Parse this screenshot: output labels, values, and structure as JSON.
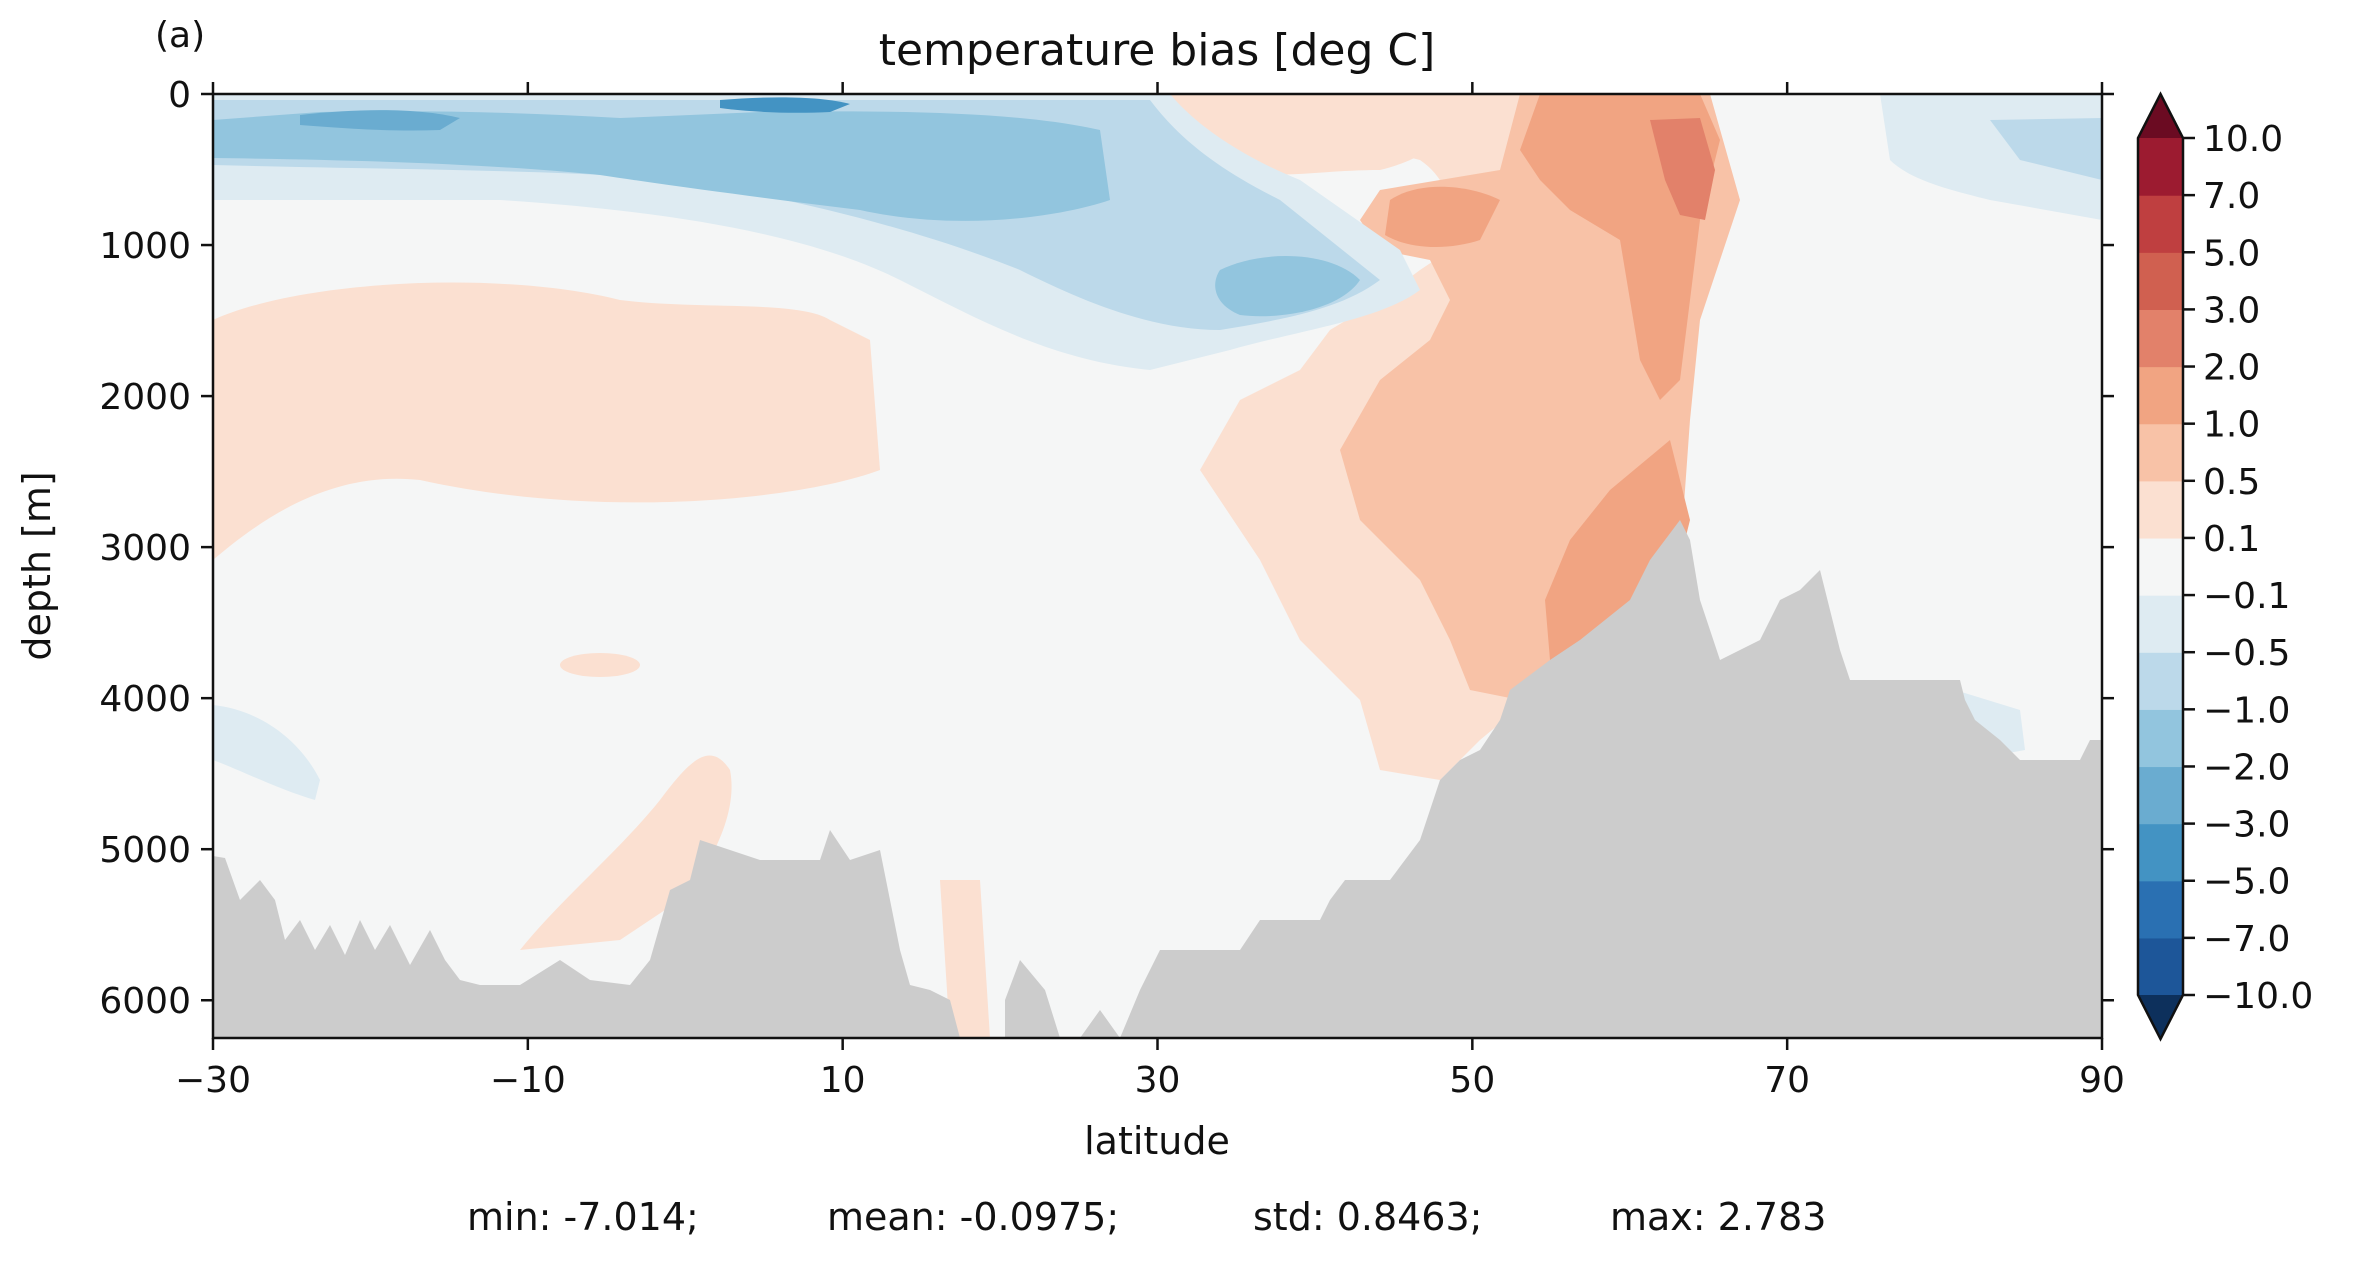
{
  "chart_data": {
    "type": "heatmap",
    "panel_label": "(a)",
    "title": "temperature bias [deg C]",
    "xlabel": "latitude",
    "ylabel": "depth [m]",
    "xlim": [
      -30,
      90
    ],
    "ylim": [
      6250,
      0
    ],
    "x_ticks": [
      -30,
      -10,
      10,
      30,
      50,
      70,
      90
    ],
    "x_tick_labels": [
      "−30",
      "−10",
      "10",
      "30",
      "50",
      "70",
      "90"
    ],
    "y_ticks": [
      0,
      1000,
      2000,
      3000,
      4000,
      5000,
      6000
    ],
    "y_tick_labels": [
      "0",
      "1000",
      "2000",
      "3000",
      "4000",
      "5000",
      "6000"
    ],
    "colorbar": {
      "levels": [
        "−10.0",
        "−7.0",
        "−5.0",
        "−3.0",
        "−2.0",
        "−1.0",
        "−0.5",
        "−0.1",
        "0.1",
        "0.5",
        "1.0",
        "2.0",
        "3.0",
        "5.0",
        "7.0",
        "10.0"
      ],
      "colors": [
        "#1d5699",
        "#2a70b2",
        "#4393c3",
        "#6aacd0",
        "#92c5de",
        "#bcd9ea",
        "#deebf2",
        "#f5f6f6",
        "#fbe0d1",
        "#f8c2a7",
        "#f1a482",
        "#e2816a",
        "#d06050",
        "#bf3f40",
        "#9c1b30"
      ],
      "under_color": "#0d305c",
      "over_color": "#6b0b22",
      "extend": "both"
    },
    "field_colors": {
      "neutral": "#f5f6f6",
      "land": "#cccccc"
    },
    "stats": {
      "min": "min: -7.014;",
      "mean": "mean: -0.0975;",
      "std": "std: 0.8463;",
      "max": "max: 2.783"
    }
  }
}
